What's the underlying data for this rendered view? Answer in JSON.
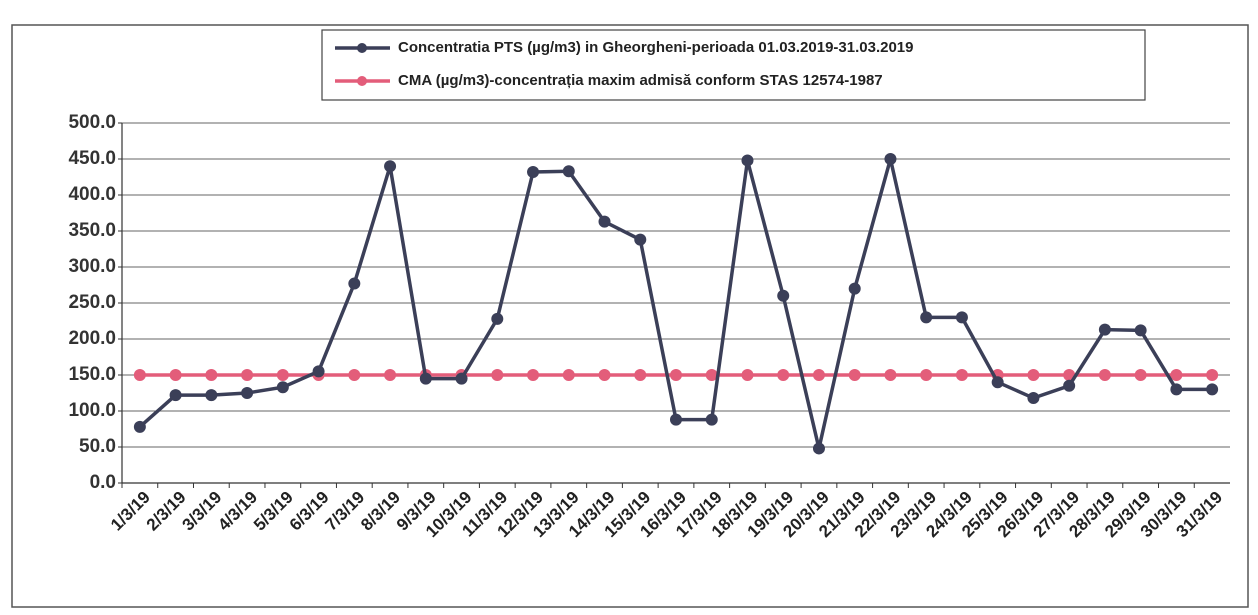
{
  "chart_data": {
    "type": "line",
    "categories": [
      "1/3/19",
      "2/3/19",
      "3/3/19",
      "4/3/19",
      "5/3/19",
      "6/3/19",
      "7/3/19",
      "8/3/19",
      "9/3/19",
      "10/3/19",
      "11/3/19",
      "12/3/19",
      "13/3/19",
      "14/3/19",
      "15/3/19",
      "16/3/19",
      "17/3/19",
      "18/3/19",
      "19/3/19",
      "20/3/19",
      "21/3/19",
      "22/3/19",
      "23/3/19",
      "24/3/19",
      "25/3/19",
      "26/3/19",
      "27/3/19",
      "28/3/19",
      "29/3/19",
      "30/3/19",
      "31/3/19"
    ],
    "series": [
      {
        "name": "Concentratia PTS (µg/m3) in Gheorgheni-perioada 01.03.2019-31.03.2019",
        "color": "#3b3f58",
        "values": [
          78,
          122,
          122,
          125,
          133,
          155,
          277,
          440,
          145,
          145,
          228,
          432,
          433,
          363,
          338,
          88,
          88,
          448,
          260,
          48,
          270,
          450,
          230,
          230,
          140,
          118,
          135,
          213,
          212,
          130,
          130
        ]
      },
      {
        "name": "CMA (µg/m3)-concentrația maxim admisă conform STAS 12574-1987",
        "color": "#e35d7a",
        "values": [
          150,
          150,
          150,
          150,
          150,
          150,
          150,
          150,
          150,
          150,
          150,
          150,
          150,
          150,
          150,
          150,
          150,
          150,
          150,
          150,
          150,
          150,
          150,
          150,
          150,
          150,
          150,
          150,
          150,
          150,
          150
        ]
      }
    ],
    "ylim": [
      0,
      500
    ],
    "yticks": [
      {
        "value": 0,
        "label": "0.0"
      },
      {
        "value": 50,
        "label": "50.0"
      },
      {
        "value": 100,
        "label": "100.0"
      },
      {
        "value": 150,
        "label": "150.0"
      },
      {
        "value": 200,
        "label": "200.0"
      },
      {
        "value": 250,
        "label": "250.0"
      },
      {
        "value": 300,
        "label": "300.0"
      },
      {
        "value": 350,
        "label": "350.0"
      },
      {
        "value": 400,
        "label": "400.0"
      },
      {
        "value": 450,
        "label": "450.0"
      },
      {
        "value": 500,
        "label": "500.0"
      }
    ],
    "grid": true,
    "legend": "top"
  }
}
